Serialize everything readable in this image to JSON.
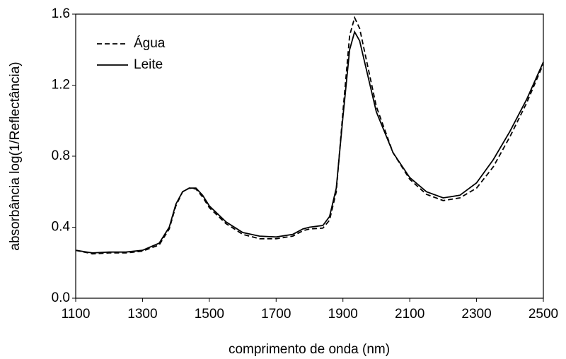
{
  "chart_data": {
    "type": "line",
    "xlabel": "comprimento de onda (nm)",
    "ylabel": "absorbância log(1/Reflectância)",
    "x": [
      1100,
      1150,
      1200,
      1250,
      1300,
      1350,
      1380,
      1400,
      1420,
      1440,
      1460,
      1480,
      1500,
      1550,
      1600,
      1650,
      1700,
      1750,
      1780,
      1800,
      1840,
      1860,
      1880,
      1900,
      1920,
      1935,
      1950,
      1975,
      2000,
      2050,
      2100,
      2150,
      2200,
      2250,
      2300,
      2350,
      2400,
      2450,
      2500
    ],
    "series": [
      {
        "name": "Água",
        "color": "#000000",
        "dash": true,
        "values": [
          0.27,
          0.25,
          0.255,
          0.255,
          0.265,
          0.3,
          0.39,
          0.52,
          0.6,
          0.62,
          0.615,
          0.57,
          0.51,
          0.42,
          0.36,
          0.335,
          0.335,
          0.35,
          0.38,
          0.39,
          0.395,
          0.44,
          0.6,
          1.05,
          1.48,
          1.58,
          1.52,
          1.3,
          1.08,
          0.82,
          0.67,
          0.585,
          0.55,
          0.565,
          0.62,
          0.74,
          0.91,
          1.1,
          1.32
        ]
      },
      {
        "name": "Leite",
        "color": "#000000",
        "dash": false,
        "values": [
          0.27,
          0.255,
          0.26,
          0.26,
          0.27,
          0.31,
          0.4,
          0.53,
          0.6,
          0.62,
          0.62,
          0.58,
          0.52,
          0.43,
          0.37,
          0.35,
          0.345,
          0.36,
          0.39,
          0.4,
          0.41,
          0.46,
          0.62,
          1.02,
          1.4,
          1.5,
          1.45,
          1.25,
          1.05,
          0.82,
          0.68,
          0.6,
          0.565,
          0.58,
          0.65,
          0.78,
          0.94,
          1.12,
          1.33
        ]
      }
    ],
    "xlim": [
      1100,
      2500
    ],
    "xticks": [
      1100,
      1300,
      1500,
      1700,
      1900,
      2100,
      2300,
      2500
    ],
    "ylim": [
      0,
      1.6
    ],
    "yticks": [
      {
        "value": 0,
        "label": "0.0"
      },
      0.4,
      0.8,
      1.2,
      1.6
    ],
    "legend": "upper left",
    "grid": false
  }
}
